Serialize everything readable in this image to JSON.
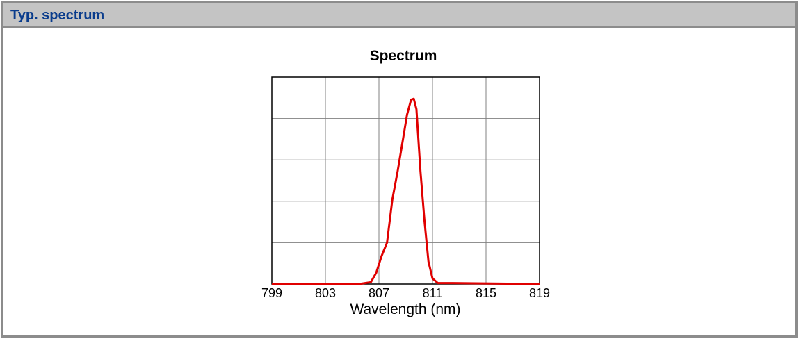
{
  "panel": {
    "title": "Typ. spectrum"
  },
  "colors": {
    "header_bg": "#c4c4c4",
    "title_text": "#0a3c8c",
    "border": "#8c8c8c",
    "series": "#e00000",
    "grid": "#808080"
  },
  "chart_data": {
    "type": "line",
    "title": "Spectrum",
    "xlabel": "Wavelength (nm)",
    "ylabel": "",
    "xlim": [
      799,
      819
    ],
    "ylim": [
      0,
      1.1
    ],
    "x_ticks": [
      799,
      803,
      807,
      811,
      815,
      819
    ],
    "y_grid_count": 5,
    "grid": true,
    "series": [
      {
        "x": [
          799,
          805.5,
          806.4,
          806.8,
          807.2,
          807.6,
          808.0,
          808.4,
          808.8,
          809.1,
          809.4,
          809.6,
          809.8,
          810.1,
          810.4,
          810.7,
          811.0,
          811.4,
          812.5,
          819
        ],
        "y": [
          0,
          0,
          0.01,
          0.06,
          0.15,
          0.22,
          0.45,
          0.6,
          0.77,
          0.9,
          0.98,
          0.985,
          0.93,
          0.6,
          0.34,
          0.12,
          0.03,
          0.005,
          0.005,
          0
        ]
      }
    ]
  }
}
